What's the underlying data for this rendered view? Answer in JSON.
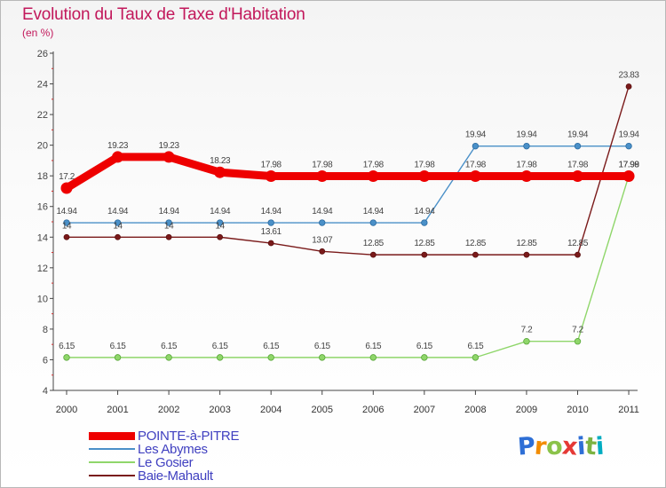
{
  "title": "Evolution du Taux de Taxe d'Habitation",
  "subtitle": "(en %)",
  "logo": {
    "text": "Proxiti",
    "colors": [
      "#2e6fd6",
      "#f28c00",
      "#8bc34a",
      "#e53935",
      "#2e6fd6",
      "#7cb342",
      "#00acc1"
    ]
  },
  "chart_data": {
    "type": "line",
    "title": "Evolution du Taux de Taxe d'Habitation",
    "ylabel": "(en %)",
    "xlabel": "",
    "x": [
      "2000",
      "2001",
      "2002",
      "2003",
      "2004",
      "2005",
      "2006",
      "2007",
      "2008",
      "2009",
      "2010",
      "2011"
    ],
    "ylim": [
      4,
      26
    ],
    "yticks": [
      "4",
      "6",
      "8",
      "10",
      "12",
      "14",
      "16",
      "18",
      "20",
      "22",
      "24",
      "26"
    ],
    "grid": false,
    "legend_position": "bottom-left",
    "series": [
      {
        "name": "POINTE-à-PITRE",
        "color": "#ee0000",
        "values": [
          17.2,
          19.23,
          19.23,
          18.23,
          17.98,
          17.98,
          17.98,
          17.98,
          17.98,
          17.98,
          17.98,
          17.98
        ],
        "labels": [
          "17.2",
          "19.23",
          "19.23",
          "18.23",
          "17.98",
          "17.98",
          "17.98",
          "17.98",
          "17.98",
          "17.98",
          "17.98",
          "17.98"
        ]
      },
      {
        "name": "Les Abymes",
        "color": "#4a90c8",
        "values": [
          14.94,
          14.94,
          14.94,
          14.94,
          14.94,
          14.94,
          14.94,
          14.94,
          19.94,
          19.94,
          19.94,
          19.94
        ],
        "labels": [
          "14.94",
          "14.94",
          "14.94",
          "14.94",
          "14.94",
          "14.94",
          "14.94",
          "14.94",
          "19.94",
          "19.94",
          "19.94",
          "19.94"
        ]
      },
      {
        "name": "Le Gosier",
        "color": "#8fd66a",
        "values": [
          6.15,
          6.15,
          6.15,
          6.15,
          6.15,
          6.15,
          6.15,
          6.15,
          6.15,
          7.2,
          7.2,
          17.99
        ],
        "labels": [
          "6.15",
          "6.15",
          "6.15",
          "6.15",
          "6.15",
          "6.15",
          "6.15",
          "6.15",
          "6.15",
          "7.2",
          "7.2",
          "17.99"
        ]
      },
      {
        "name": "Baie-Mahault",
        "color": "#7a1a1a",
        "values": [
          14,
          14,
          14,
          14,
          13.61,
          13.07,
          12.85,
          12.85,
          12.85,
          12.85,
          12.85,
          23.83
        ],
        "labels": [
          "14",
          "14",
          "14",
          "14",
          "13.61",
          "13.07",
          "12.85",
          "12.85",
          "12.85",
          "12.85",
          "12.85",
          "23.83"
        ]
      }
    ]
  }
}
